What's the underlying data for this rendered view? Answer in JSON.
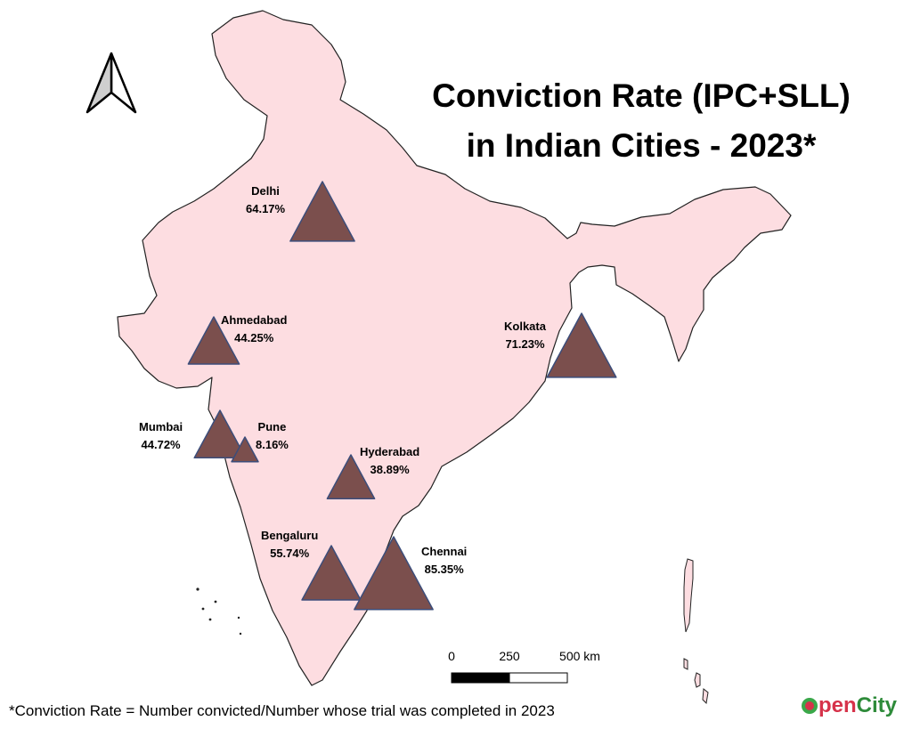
{
  "title": {
    "line1": "Conviction Rate (IPC+SLL)",
    "line2": "in Indian Cities - 2023*"
  },
  "cities": [
    {
      "name": "Delhi",
      "value": "64.17%"
    },
    {
      "name": "Ahmedabad",
      "value": "44.25%"
    },
    {
      "name": "Kolkata",
      "value": "71.23%"
    },
    {
      "name": "Mumbai",
      "value": "44.72%"
    },
    {
      "name": "Pune",
      "value": "8.16%"
    },
    {
      "name": "Hyderabad",
      "value": "38.89%"
    },
    {
      "name": "Bengaluru",
      "value": "55.74%"
    },
    {
      "name": "Chennai",
      "value": "85.35%"
    }
  ],
  "scale_bar": {
    "tick_0": "0",
    "tick_1": "250",
    "tick_2": "500 km"
  },
  "footnote": "*Conviction Rate = Number convicted/Number whose trial was completed in 2023",
  "logo": {
    "part1": "pen",
    "part2": "City"
  },
  "colors": {
    "land": "#fddde1",
    "marker": "#7b4f4d",
    "marker_outline": "#3c4d7a",
    "logo_red": "#d6324a",
    "logo_green": "#2e8b3a"
  },
  "icons": {
    "north_arrow": "north-arrow-icon",
    "marker": "triangle-marker"
  }
}
